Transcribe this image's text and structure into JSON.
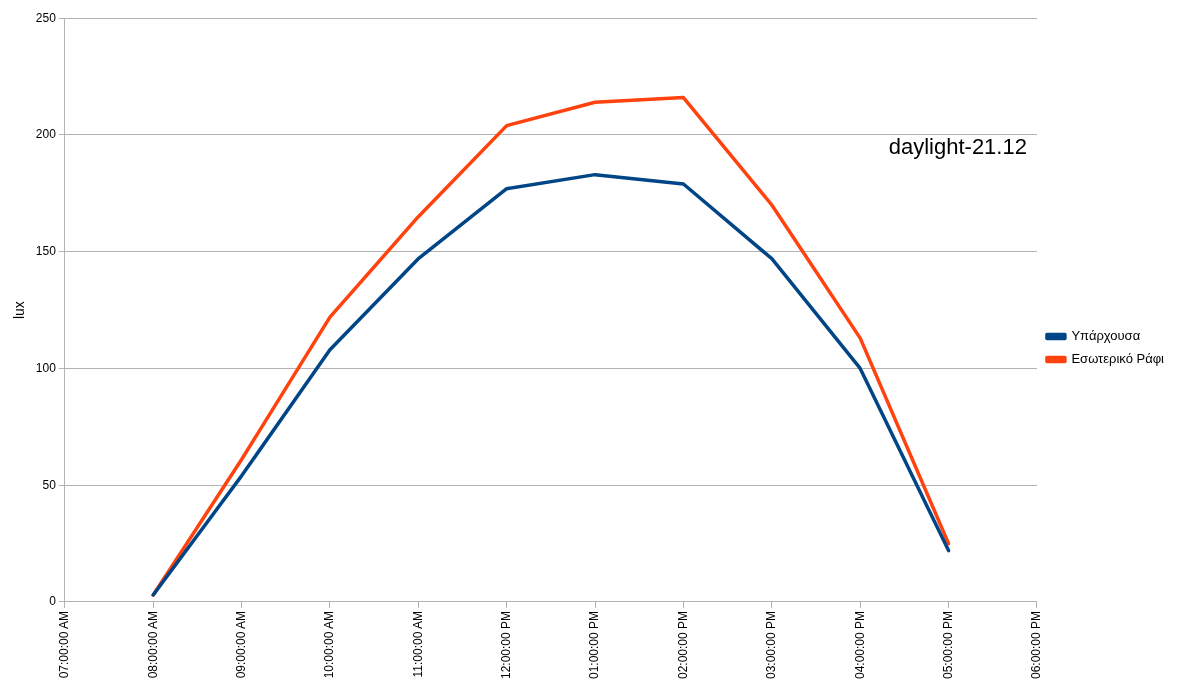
{
  "chart_data": {
    "type": "line",
    "ylabel": "lux",
    "annotations": [
      "daylight-21.12"
    ],
    "x": [
      8,
      9,
      10,
      11,
      12,
      13,
      14,
      15,
      16,
      17
    ],
    "xlim": [
      7,
      18
    ],
    "xticks": [
      {
        "value": 7,
        "label": "07:00:00 AM"
      },
      {
        "value": 8,
        "label": "08:00:00 AM"
      },
      {
        "value": 9,
        "label": "09:00:00 AM"
      },
      {
        "value": 10,
        "label": "10:00:00 AM"
      },
      {
        "value": 11,
        "label": "11:00:00 AM"
      },
      {
        "value": 12,
        "label": "12:00:00 PM"
      },
      {
        "value": 13,
        "label": "01:00:00 PM"
      },
      {
        "value": 14,
        "label": "02:00:00 PM"
      },
      {
        "value": 15,
        "label": "03:00:00 PM"
      },
      {
        "value": 16,
        "label": "04:00:00 PM"
      },
      {
        "value": 17,
        "label": "05:00:00 PM"
      },
      {
        "value": 18,
        "label": "06:00:00 PM"
      }
    ],
    "ylim": [
      0,
      250
    ],
    "yticks": [
      0,
      50,
      100,
      150,
      200,
      250
    ],
    "grid": "y",
    "legend": "right",
    "marker": "none",
    "line_style": "solid",
    "series": [
      {
        "name": "Υπάρχουσα",
        "color": "#004586",
        "values": [
          3,
          54,
          108,
          147,
          177,
          183,
          179,
          147,
          100,
          22
        ]
      },
      {
        "name": "Εσωτερικό Ράφι",
        "color": "#ff420e",
        "values": [
          3,
          61,
          122,
          165,
          204,
          214,
          216,
          170,
          113,
          25
        ]
      }
    ]
  }
}
